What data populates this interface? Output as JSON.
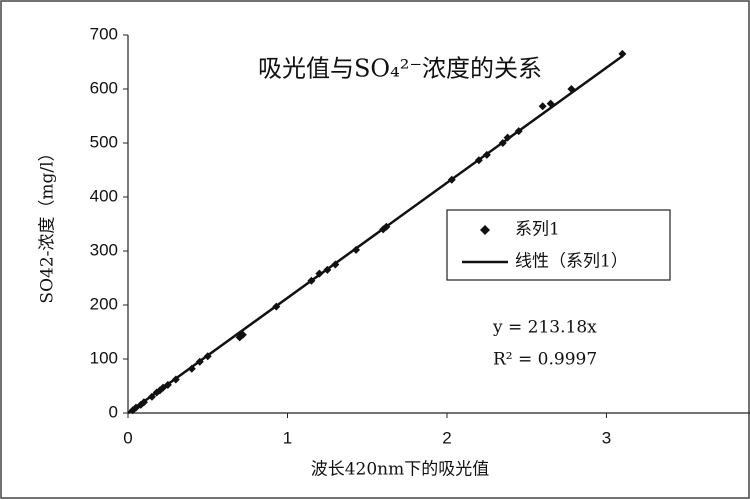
{
  "chart_data": {
    "type": "scatter",
    "title": "吸光值与SO₄²⁻浓度的关系",
    "x_label": "波长420nm下的吸光值",
    "y_label": "SO42-浓度（mg/l）",
    "xlim": [
      0,
      3.9
    ],
    "xticks": [
      0,
      1,
      2,
      3
    ],
    "ylim": [
      0,
      700
    ],
    "yticks": [
      0,
      100,
      200,
      300,
      400,
      500,
      600,
      700
    ],
    "legend": "right",
    "series": [
      {
        "name": "系列1",
        "color": "#111111",
        "x": [
          0.03,
          0.05,
          0.08,
          0.1,
          0.15,
          0.18,
          0.2,
          0.22,
          0.25,
          0.3,
          0.4,
          0.45,
          0.5,
          0.7,
          0.72,
          0.93,
          1.15,
          1.2,
          1.25,
          1.3,
          1.43,
          1.6,
          1.62,
          2.03,
          2.2,
          2.25,
          2.35,
          2.38,
          2.45,
          2.6,
          2.65,
          2.78,
          3.1
        ],
        "values": [
          5,
          10,
          15,
          20,
          30,
          38,
          42,
          47,
          52,
          62,
          82,
          95,
          105,
          140,
          145,
          197,
          245,
          258,
          265,
          275,
          302,
          340,
          345,
          432,
          468,
          478,
          500,
          510,
          522,
          568,
          573,
          600,
          665
        ]
      }
    ],
    "trendline": {
      "name": "线性（系列1）",
      "slope": 213.18,
      "color": "#111111",
      "equation": "y = 213.18x",
      "r_squared": "R² = 0.9997"
    }
  }
}
